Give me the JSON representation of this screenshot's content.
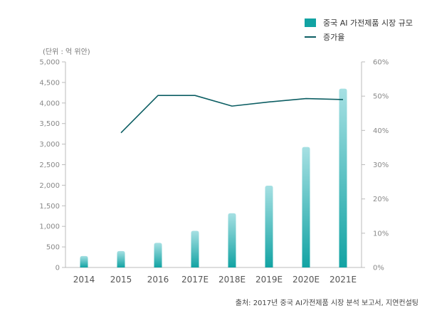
{
  "legend": {
    "bar_label": "중국 AI 가전제품 시장 규모",
    "line_label": "증가율"
  },
  "unit_label": "(단위 : 억 위안)",
  "source": "출처: 2017년 중국 AI가전제품 시장 분석 보고서, 지연컨설팅",
  "colors": {
    "bar_top": "#a6e0e3",
    "bar_bottom": "#12a3a3",
    "line": "#0c5e63",
    "axis": "#bbbbbb",
    "tick_text": "#888888",
    "cat_text": "#555555"
  },
  "chart_data": {
    "type": "bar",
    "categories": [
      "2014",
      "2015",
      "2016",
      "2017E",
      "2018E",
      "2019E",
      "2020E",
      "2021E"
    ],
    "series": [
      {
        "name": "중국 AI 가전제품 시장 규모",
        "type": "bar",
        "axis": "left",
        "values": [
          280,
          400,
          600,
          890,
          1320,
          1990,
          2930,
          4350
        ]
      },
      {
        "name": "증가율",
        "type": "line",
        "axis": "right",
        "values": [
          null,
          39.3,
          50.2,
          50.2,
          47.1,
          48.3,
          49.3,
          49.0
        ]
      }
    ],
    "y_left": {
      "ylim": [
        0,
        5000
      ],
      "ticks": [
        "0",
        "500",
        "1,000",
        "1,500",
        "2,000",
        "2,500",
        "3,000",
        "3,500",
        "4,000",
        "4,500",
        "5,000"
      ]
    },
    "y_right": {
      "ylim": [
        0,
        60
      ],
      "ticks": [
        "0%",
        "10%",
        "20%",
        "30%",
        "40%",
        "50%",
        "60%"
      ]
    },
    "grid": false
  }
}
